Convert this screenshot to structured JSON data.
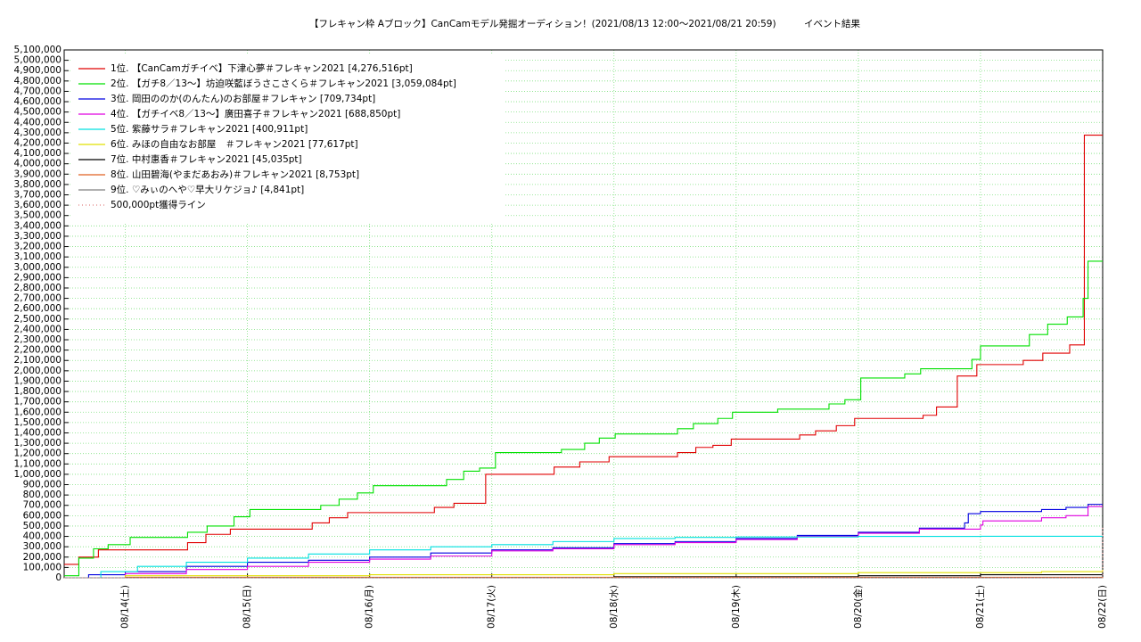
{
  "chart_data": {
    "type": "line",
    "step": true,
    "title": "【フレキャン枠 Aブロック】CanCamモデル発掘オーディション！(2021/08/13 12:00〜2021/08/21 20:59)　　　イベント結果",
    "xlim": [
      13.5,
      22
    ],
    "xticks": [
      {
        "value": 14,
        "label": "08/14(土)"
      },
      {
        "value": 15,
        "label": "08/15(日)"
      },
      {
        "value": 16,
        "label": "08/16(月)"
      },
      {
        "value": 17,
        "label": "08/17(火)"
      },
      {
        "value": 18,
        "label": "08/18(水)"
      },
      {
        "value": 19,
        "label": "08/19(木)"
      },
      {
        "value": 20,
        "label": "08/20(金)"
      },
      {
        "value": 21,
        "label": "08/21(土)"
      },
      {
        "value": 22,
        "label": "08/22(日)"
      }
    ],
    "ylim": [
      0,
      5100000
    ],
    "yticks": [
      0,
      {
        "value": 100000,
        "label": "100,000"
      },
      {
        "value": 200000,
        "label": "200,000"
      },
      {
        "value": 300000,
        "label": "300,000"
      },
      {
        "value": 400000,
        "label": "400,000"
      },
      {
        "value": 500000,
        "label": "500,000"
      },
      {
        "value": 600000,
        "label": "600,000"
      },
      {
        "value": 700000,
        "label": "700,000"
      },
      {
        "value": 800000,
        "label": "800,000"
      },
      {
        "value": 900000,
        "label": "900,000"
      },
      {
        "value": 1000000,
        "label": "1,000,000"
      },
      {
        "value": 1100000,
        "label": "1,100,000"
      },
      {
        "value": 1200000,
        "label": "1,200,000"
      },
      {
        "value": 1300000,
        "label": "1,300,000"
      },
      {
        "value": 1400000,
        "label": "1,400,000"
      },
      {
        "value": 1500000,
        "label": "1,500,000"
      },
      {
        "value": 1600000,
        "label": "1,600,000"
      },
      {
        "value": 1700000,
        "label": "1,700,000"
      },
      {
        "value": 1800000,
        "label": "1,800,000"
      },
      {
        "value": 1900000,
        "label": "1,900,000"
      },
      {
        "value": 2000000,
        "label": "2,000,000"
      },
      {
        "value": 2100000,
        "label": "2,100,000"
      },
      {
        "value": 2200000,
        "label": "2,200,000"
      },
      {
        "value": 2300000,
        "label": "2,300,000"
      },
      {
        "value": 2400000,
        "label": "2,400,000"
      },
      {
        "value": 2500000,
        "label": "2,500,000"
      },
      {
        "value": 2600000,
        "label": "2,600,000"
      },
      {
        "value": 2700000,
        "label": "2,700,000"
      },
      {
        "value": 2800000,
        "label": "2,800,000"
      },
      {
        "value": 2900000,
        "label": "2,900,000"
      },
      {
        "value": 3000000,
        "label": "3,000,000"
      },
      {
        "value": 3100000,
        "label": "3,100,000"
      },
      {
        "value": 3200000,
        "label": "3,200,000"
      },
      {
        "value": 3300000,
        "label": "3,300,000"
      },
      {
        "value": 3400000,
        "label": "3,400,000"
      },
      {
        "value": 3500000,
        "label": "3,500,000"
      },
      {
        "value": 3600000,
        "label": "3,600,000"
      },
      {
        "value": 3700000,
        "label": "3,700,000"
      },
      {
        "value": 3800000,
        "label": "3,800,000"
      },
      {
        "value": 3900000,
        "label": "3,900,000"
      },
      {
        "value": 4000000,
        "label": "4,000,000"
      },
      {
        "value": 4100000,
        "label": "4,100,000"
      },
      {
        "value": 4200000,
        "label": "4,200,000"
      },
      {
        "value": 4300000,
        "label": "4,300,000"
      },
      {
        "value": 4400000,
        "label": "4,400,000"
      },
      {
        "value": 4500000,
        "label": "4,500,000"
      },
      {
        "value": 4600000,
        "label": "4,600,000"
      },
      {
        "value": 4700000,
        "label": "4,700,000"
      },
      {
        "value": 4800000,
        "label": "4,800,000"
      },
      {
        "value": 4900000,
        "label": "4,900,000"
      },
      {
        "value": 5000000,
        "label": "5,000,000"
      },
      {
        "value": 5100000,
        "label": "5,100,000"
      }
    ],
    "grid": true,
    "legend": "upper left",
    "series": [
      {
        "name": "1位. 【CanCamガチイベ】下津心夢＃フレキャン2021 [4,276,516pt]",
        "color": "#e00000",
        "x": [
          13.5,
          13.62,
          13.78,
          14.51,
          14.66,
          14.86,
          15.53,
          15.67,
          15.82,
          16.53,
          16.69,
          16.95,
          17.51,
          17.72,
          17.96,
          18.52,
          18.67,
          18.81,
          18.96,
          19.52,
          19.65,
          19.82,
          19.97,
          20.53,
          20.64,
          20.81,
          20.97,
          21.35,
          21.51,
          21.73,
          21.85,
          22
        ],
        "values": [
          130000,
          200000,
          270000,
          340000,
          420000,
          470000,
          530000,
          580000,
          630000,
          680000,
          720000,
          1000000,
          1070000,
          1120000,
          1170000,
          1210000,
          1260000,
          1280000,
          1340000,
          1380000,
          1420000,
          1470000,
          1540000,
          1570000,
          1650000,
          1950000,
          2060000,
          2100000,
          2170000,
          2250000,
          4276516,
          4276516
        ]
      },
      {
        "name": "2位. 【ガチ8／13〜】坊迫咲藍ぼうさこさくら＃フレキャン2021 [3,059,084pt]",
        "color": "#00e000",
        "x": [
          13.5,
          13.62,
          13.74,
          13.86,
          14.04,
          14.51,
          14.67,
          14.89,
          15.02,
          15.6,
          15.75,
          15.9,
          16.03,
          16.63,
          16.77,
          16.9,
          17.03,
          17.57,
          17.76,
          17.88,
          18.01,
          18.52,
          18.65,
          18.85,
          18.97,
          19.34,
          19.76,
          19.89,
          20.02,
          20.38,
          20.51,
          20.93,
          21.0,
          21.4,
          21.55,
          21.71,
          21.84,
          21.88,
          22
        ],
        "values": [
          20000,
          190000,
          280000,
          320000,
          390000,
          440000,
          500000,
          590000,
          660000,
          700000,
          760000,
          820000,
          890000,
          950000,
          1030000,
          1060000,
          1210000,
          1240000,
          1300000,
          1350000,
          1390000,
          1440000,
          1490000,
          1540000,
          1600000,
          1630000,
          1680000,
          1720000,
          1930000,
          1970000,
          2020000,
          2110000,
          2240000,
          2350000,
          2450000,
          2520000,
          2700000,
          3059084,
          3059084
        ]
      },
      {
        "name": "3位. 岡田ののか(のんたん)のお部屋＃フレキャン [709,734pt]",
        "color": "#0000e0",
        "x": [
          13.5,
          13.7,
          14.0,
          14.5,
          15.0,
          15.5,
          16.0,
          16.5,
          17.0,
          17.5,
          18.0,
          18.5,
          19.0,
          19.5,
          20.0,
          20.5,
          20.87,
          20.9,
          21.0,
          21.5,
          21.7,
          21.88,
          22
        ],
        "values": [
          0,
          30000,
          60000,
          110000,
          150000,
          170000,
          200000,
          240000,
          270000,
          290000,
          330000,
          350000,
          380000,
          410000,
          440000,
          480000,
          530000,
          620000,
          640000,
          660000,
          680000,
          709734,
          709734
        ]
      },
      {
        "name": "4位. 【ガチイベ8／13〜】廣田喜子＃フレキャン2021 [688,850pt]",
        "color": "#e000e0",
        "x": [
          13.5,
          14.0,
          14.5,
          15.0,
          15.5,
          16.0,
          16.5,
          17.0,
          17.5,
          18.0,
          18.5,
          19.0,
          19.5,
          20.0,
          20.5,
          21.0,
          21.02,
          21.5,
          21.7,
          21.88,
          22
        ],
        "values": [
          0,
          40000,
          80000,
          110000,
          150000,
          180000,
          210000,
          260000,
          280000,
          320000,
          340000,
          370000,
          400000,
          430000,
          470000,
          510000,
          550000,
          580000,
          600000,
          688850,
          688850
        ]
      },
      {
        "name": "5位. 紫藤サラ＃フレキャン2021 [400,911pt]",
        "color": "#00e0e0",
        "x": [
          13.5,
          13.8,
          14.1,
          14.5,
          15.0,
          15.5,
          16.0,
          16.5,
          17.0,
          17.5,
          18.0,
          18.5,
          19.0,
          20.0,
          21.0,
          22
        ],
        "values": [
          0,
          60000,
          110000,
          150000,
          190000,
          230000,
          270000,
          300000,
          320000,
          350000,
          380000,
          390000,
          395000,
          400000,
          400911,
          400911
        ]
      },
      {
        "name": "6位. みほの自由なお部屋　＃フレキャン2021 [77,617pt]",
        "color": "#e0e000",
        "x": [
          13.5,
          14.0,
          16.0,
          18.0,
          20.0,
          21.5,
          22
        ],
        "values": [
          0,
          20000,
          30000,
          40000,
          50000,
          60000,
          77617
        ]
      },
      {
        "name": "7位. 中村惠香＃フレキャン2021 [45,035pt]",
        "color": "#000000",
        "x": [
          13.5,
          18.0,
          20.0,
          21.0,
          22
        ],
        "values": [
          0,
          10000,
          20000,
          30000,
          45035
        ]
      },
      {
        "name": "8位. 山田碧海(やまだあおみ)＃フレキャン2021 [8,753pt]",
        "color": "#e06020",
        "x": [
          13.5,
          14.0,
          22
        ],
        "values": [
          0,
          5000,
          8753
        ]
      },
      {
        "name": "9位. ♡みぃのへや♡早大リケジョ♪ [4,841pt]",
        "color": "#808080",
        "x": [
          13.5,
          22
        ],
        "values": [
          0,
          4841
        ]
      },
      {
        "name": "500,000pt獲得ライン",
        "color": "#e08080",
        "dotted": true,
        "x": [
          13.5,
          22
        ],
        "values": [
          0,
          500000
        ]
      }
    ]
  }
}
